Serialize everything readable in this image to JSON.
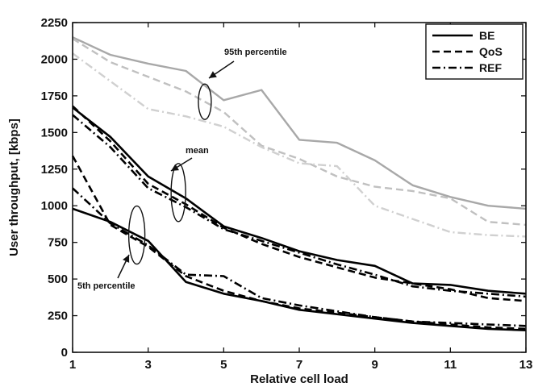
{
  "chart_data": {
    "type": "line",
    "title": "",
    "xlabel": "Relative cell load",
    "ylabel": "User throughput, [kbps]",
    "xlim": [
      1,
      13
    ],
    "ylim": [
      0,
      2250
    ],
    "x_ticks": [
      1,
      3,
      5,
      7,
      9,
      11,
      13
    ],
    "y_ticks": [
      0,
      250,
      500,
      750,
      1000,
      1250,
      1500,
      1750,
      2000,
      2250
    ],
    "grid": false,
    "legend_position": "top-right",
    "legend": [
      {
        "label": "BE",
        "dash": "solid"
      },
      {
        "label": "QoS",
        "dash": "dashed"
      },
      {
        "label": "REF",
        "dash": "dashdot"
      }
    ],
    "annotations": [
      {
        "text": "95th percentile"
      },
      {
        "text": "mean"
      },
      {
        "text": "5th percentile"
      }
    ],
    "x": [
      1,
      2,
      3,
      4,
      5,
      6,
      7,
      8,
      9,
      10,
      11,
      12,
      13
    ],
    "series": [
      {
        "scheme": "BE",
        "stat": "95th percentile",
        "color": "#a8a8a8",
        "dash": "solid",
        "values": [
          2150,
          2030,
          1970,
          1920,
          1720,
          1790,
          1450,
          1430,
          1310,
          1140,
          1060,
          1000,
          980
        ]
      },
      {
        "scheme": "QoS",
        "stat": "95th percentile",
        "color": "#c0c0c0",
        "dash": "dashed",
        "values": [
          2140,
          1980,
          1880,
          1780,
          1640,
          1410,
          1320,
          1200,
          1130,
          1100,
          1050,
          890,
          870
        ]
      },
      {
        "scheme": "REF",
        "stat": "95th percentile",
        "color": "#d0d0d0",
        "dash": "dashdot",
        "values": [
          2040,
          1850,
          1660,
          1610,
          1540,
          1400,
          1290,
          1270,
          1000,
          910,
          820,
          800,
          790
        ]
      },
      {
        "scheme": "BE",
        "stat": "mean",
        "color": "#000000",
        "dash": "solid",
        "values": [
          1670,
          1470,
          1200,
          1050,
          860,
          780,
          690,
          630,
          590,
          470,
          460,
          420,
          400
        ]
      },
      {
        "scheme": "QoS",
        "stat": "mean",
        "color": "#000000",
        "dash": "dashed",
        "values": [
          1680,
          1440,
          1150,
          1010,
          850,
          740,
          650,
          580,
          510,
          470,
          430,
          370,
          350
        ]
      },
      {
        "scheme": "REF",
        "stat": "mean",
        "color": "#000000",
        "dash": "dashdot",
        "values": [
          1620,
          1400,
          1120,
          990,
          840,
          760,
          680,
          600,
          530,
          450,
          420,
          400,
          380
        ]
      },
      {
        "scheme": "BE",
        "stat": "5th percentile",
        "color": "#000000",
        "dash": "solid",
        "values": [
          980,
          890,
          760,
          480,
          400,
          350,
          290,
          260,
          230,
          200,
          180,
          160,
          150
        ]
      },
      {
        "scheme": "QoS",
        "stat": "5th percentile",
        "color": "#000000",
        "dash": "dashed",
        "values": [
          1340,
          870,
          720,
          520,
          420,
          350,
          300,
          270,
          240,
          210,
          190,
          170,
          160
        ]
      },
      {
        "scheme": "REF",
        "stat": "5th percentile",
        "color": "#000000",
        "dash": "dashdot",
        "values": [
          1120,
          880,
          730,
          530,
          520,
          370,
          320,
          280,
          240,
          210,
          200,
          190,
          180
        ]
      }
    ]
  }
}
